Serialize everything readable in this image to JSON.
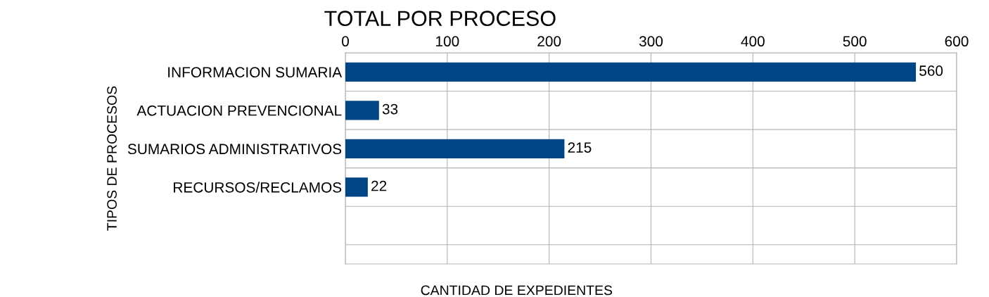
{
  "chart_data": {
    "type": "bar",
    "orientation": "horizontal",
    "title": "TOTAL POR PROCESO",
    "xlabel": "CANTIDAD DE EXPEDIENTES",
    "ylabel": "TIPOS DE PROCESOS",
    "categories": [
      "INFORMACION SUMARIA",
      "ACTUACION PREVENCIONAL",
      "SUMARIOS ADMINISTRATIVOS",
      "RECURSOS/RECLAMOS",
      null
    ],
    "values": [
      560,
      33,
      215,
      22,
      null
    ],
    "color": "#004586",
    "xlim": [
      0,
      600
    ],
    "xticks": [
      0,
      100,
      200,
      300,
      400,
      500,
      600
    ],
    "grid": true,
    "data_labels": true
  }
}
